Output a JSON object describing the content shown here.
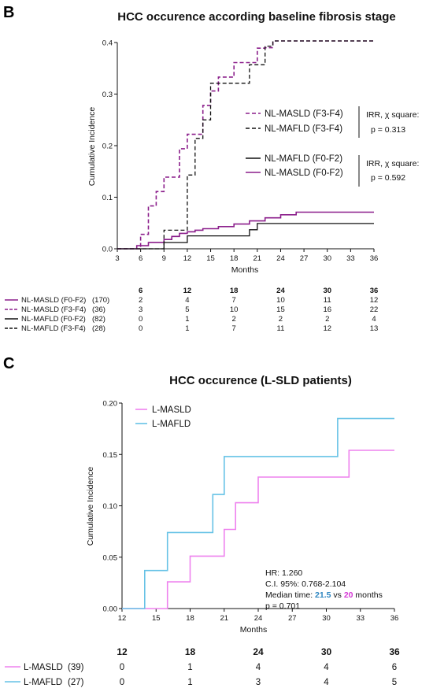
{
  "panel_b": {
    "letter": "B",
    "legend_items": [
      {
        "label": "NL-MASLD (F3-F4)",
        "series_index": 1
      },
      {
        "label": "NL-MAFLD (F3-F4)",
        "series_index": 3
      },
      {
        "label": "NL-MAFLD (F0-F2)",
        "series_index": 2
      },
      {
        "label": "NL-MASLD (F0-F2)",
        "series_index": 0
      }
    ],
    "stats": [
      {
        "line1": "IRR, χ square:",
        "line2": "p = 0.313"
      },
      {
        "line1": "IRR, χ square:",
        "line2": "p = 0.592"
      }
    ],
    "risk_table": {
      "timepoints": [
        "6",
        "12",
        "18",
        "24",
        "30",
        "36"
      ],
      "rows": [
        {
          "label": "NL-MASLD (F0-F2)",
          "n": "(170)",
          "values": [
            "2",
            "4",
            "7",
            "10",
            "11",
            "12"
          ],
          "color": "#8B1E8B",
          "dash": "solid"
        },
        {
          "label": "NL-MASLD (F3-F4)",
          "n": "(36)",
          "values": [
            "3",
            "5",
            "10",
            "15",
            "16",
            "22"
          ],
          "color": "#8B1E8B",
          "dash": "dashed"
        },
        {
          "label": "NL-MAFLD (F0-F2)",
          "n": "(82)",
          "values": [
            "0",
            "1",
            "2",
            "2",
            "2",
            "4"
          ],
          "color": "#111111",
          "dash": "solid"
        },
        {
          "label": "NL-MAFLD (F3-F4)",
          "n": "(28)",
          "values": [
            "0",
            "1",
            "7",
            "11",
            "12",
            "13"
          ],
          "color": "#111111",
          "dash": "dashed"
        }
      ]
    }
  },
  "panel_c": {
    "letter": "C",
    "legend_items": [
      {
        "label": "L-MASLD",
        "series_index": 0
      },
      {
        "label": "L-MAFLD",
        "series_index": 1
      }
    ],
    "stats": {
      "hr": "HR: 1.260",
      "ci": "C.I. 95%: 0.768-2.104",
      "median_prefix": "Median time: ",
      "median_a": "21.5",
      "median_vs": " vs ",
      "median_b": "20",
      "median_suffix": " months",
      "p": "p = 0.701",
      "color_a": "#2E86C1",
      "color_b": "#D63AD6"
    },
    "risk_table": {
      "timepoints": [
        "12",
        "18",
        "24",
        "30",
        "36"
      ],
      "rows": [
        {
          "label": "L-MASLD",
          "n": "(39)",
          "values": [
            "0",
            "1",
            "4",
            "4",
            "6"
          ],
          "color": "#EE82EE"
        },
        {
          "label": "L-MAFLD",
          "n": "(27)",
          "values": [
            "0",
            "1",
            "3",
            "4",
            "5"
          ],
          "color": "#66C2E6"
        }
      ]
    }
  },
  "chart_data": [
    {
      "type": "line",
      "step": true,
      "title": "HCC occurence according baseline fibrosis stage",
      "xlabel": "Months",
      "ylabel": "Cumulative Incidence",
      "xlim": [
        3,
        36
      ],
      "ylim": [
        0,
        0.4
      ],
      "xticks": [
        3,
        6,
        9,
        12,
        15,
        18,
        21,
        24,
        27,
        30,
        33,
        36
      ],
      "yticks": [
        0.0,
        0.1,
        0.2,
        0.3,
        0.4
      ],
      "ytick_labels": [
        "0.0",
        "0.1",
        "0.2",
        "0.3",
        "0.4"
      ],
      "grid": false,
      "legend_position": "right",
      "series": [
        {
          "name": "NL-MASLD (F0-F2)",
          "color": "#8B1E8B",
          "dash": "solid",
          "x": [
            3,
            5.5,
            7,
            9,
            10,
            11,
            12,
            13,
            14,
            16,
            18,
            20,
            22,
            24,
            26,
            36
          ],
          "y": [
            0,
            0.006,
            0.012,
            0.018,
            0.024,
            0.03,
            0.033,
            0.036,
            0.039,
            0.043,
            0.048,
            0.054,
            0.06,
            0.066,
            0.071,
            0.071
          ]
        },
        {
          "name": "NL-MASLD (F3-F4)",
          "color": "#8B1E8B",
          "dash": "dashed",
          "x": [
            3,
            6,
            7,
            8,
            9,
            11,
            12,
            14,
            15,
            16,
            18,
            21,
            22,
            23,
            36
          ],
          "y": [
            0,
            0.028,
            0.083,
            0.111,
            0.139,
            0.194,
            0.222,
            0.278,
            0.306,
            0.333,
            0.361,
            0.389,
            0.39,
            0.403,
            0.403
          ]
        },
        {
          "name": "NL-MAFLD (F0-F2)",
          "color": "#111111",
          "dash": "solid",
          "x": [
            3,
            9,
            10,
            12,
            14,
            16,
            20,
            21,
            36
          ],
          "y": [
            0,
            0.012,
            0.012,
            0.025,
            0.025,
            0.025,
            0.037,
            0.049,
            0.049
          ]
        },
        {
          "name": "NL-MAFLD (F3-F4)",
          "color": "#111111",
          "dash": "dashed",
          "x": [
            3,
            9,
            10,
            12,
            13,
            14,
            15,
            16,
            18,
            20,
            21,
            22,
            23,
            24,
            36
          ],
          "y": [
            0,
            0.036,
            0.036,
            0.143,
            0.214,
            0.25,
            0.321,
            0.321,
            0.321,
            0.357,
            0.357,
            0.393,
            0.403,
            0.403,
            0.403
          ]
        }
      ]
    },
    {
      "type": "line",
      "step": true,
      "title": "HCC occurence (L-SLD patients)",
      "xlabel": "Months",
      "ylabel": "Cumulative Incidence",
      "xlim": [
        12,
        36
      ],
      "ylim": [
        0,
        0.2
      ],
      "xticks": [
        12,
        15,
        18,
        21,
        24,
        27,
        30,
        33,
        36
      ],
      "yticks": [
        0.0,
        0.05,
        0.1,
        0.15,
        0.2
      ],
      "ytick_labels": [
        "0.00",
        "0.05",
        "0.10",
        "0.15",
        "0.20"
      ],
      "grid": false,
      "legend_position": "top-left",
      "series": [
        {
          "name": "L-MASLD",
          "color": "#EE82EE",
          "dash": "solid",
          "x": [
            12,
            16,
            18,
            21,
            22,
            24,
            32,
            36
          ],
          "y": [
            0,
            0.026,
            0.051,
            0.077,
            0.103,
            0.128,
            0.154,
            0.154
          ]
        },
        {
          "name": "L-MAFLD",
          "color": "#66C2E6",
          "dash": "solid",
          "x": [
            12,
            14,
            16,
            20,
            21,
            31,
            36
          ],
          "y": [
            0,
            0.037,
            0.074,
            0.111,
            0.148,
            0.185,
            0.185
          ]
        }
      ]
    }
  ]
}
